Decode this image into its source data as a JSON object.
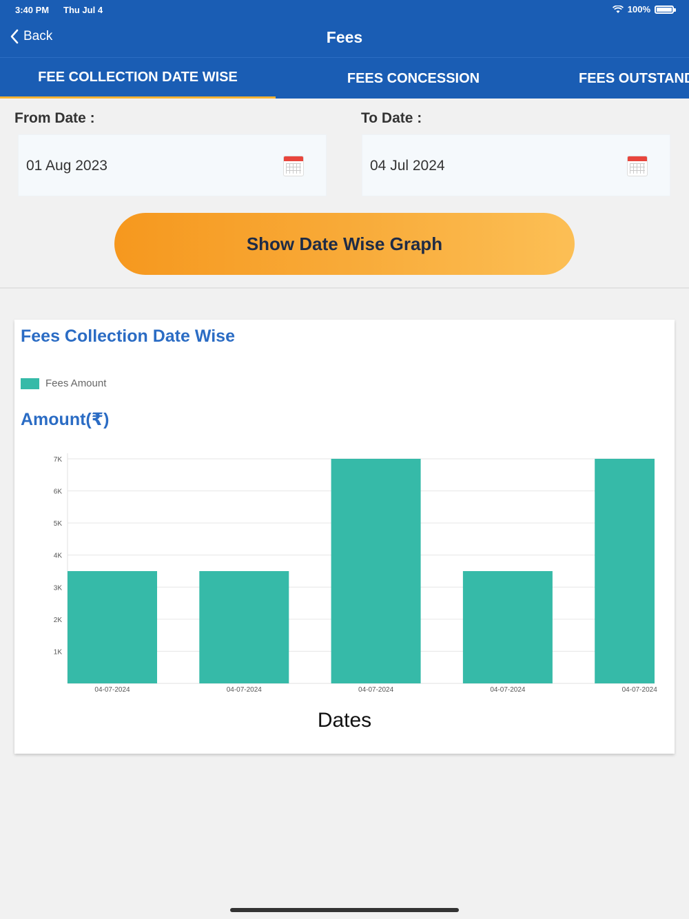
{
  "status_bar": {
    "time": "3:40 PM",
    "date": "Thu Jul 4",
    "battery": "100%"
  },
  "nav": {
    "back_label": "Back",
    "title": "Fees"
  },
  "tabs": [
    {
      "label": "FEE COLLECTION DATE WISE",
      "active": true
    },
    {
      "label": "FEES CONCESSION",
      "active": false
    },
    {
      "label": "FEES OUTSTANDING",
      "active": false
    }
  ],
  "filters": {
    "from_label": "From Date :",
    "from_value": "01 Aug 2023",
    "to_label": "To Date :",
    "to_value": "04 Jul 2024",
    "button_label": "Show Date Wise Graph"
  },
  "colors": {
    "header": "#1a5db4",
    "tab_indicator": "#f5b334",
    "bar": "#36baa8",
    "title": "#2b6cc4"
  },
  "chart_data": {
    "type": "bar",
    "title": "Fees Collection Date Wise",
    "legend": [
      "Fees Amount"
    ],
    "ylabel": "Amount(₹)",
    "xlabel": "Dates",
    "categories": [
      "04-07-2024",
      "04-07-2024",
      "04-07-2024",
      "04-07-2024",
      "04-07-2024"
    ],
    "series": [
      {
        "name": "Fees Amount",
        "values": [
          3500,
          3500,
          7000,
          3500,
          7000
        ]
      }
    ],
    "ylim": [
      0,
      7000
    ],
    "yticks": [
      {
        "value": 1000,
        "label": "1K"
      },
      {
        "value": 2000,
        "label": "2K"
      },
      {
        "value": 3000,
        "label": "3K"
      },
      {
        "value": 4000,
        "label": "4K"
      },
      {
        "value": 5000,
        "label": "5K"
      },
      {
        "value": 6000,
        "label": "6K"
      },
      {
        "value": 7000,
        "label": "7K"
      }
    ],
    "grid": true,
    "legend_position": "top-left"
  }
}
